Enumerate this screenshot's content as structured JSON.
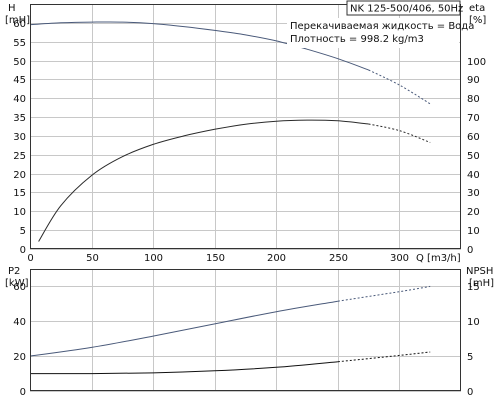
{
  "title": "NK 125-500/406, 50Hz",
  "legend_lines": [
    "Перекачиваемая жидкость = Вода",
    "Плотность = 998.2 kg/m3"
  ],
  "colors": {
    "h_curve": "#4a5a7a",
    "eta_curve": "#2a2a2a",
    "p2_curve": "#4a5a7a",
    "npsh_curve": "#111111",
    "grid": "#c8c8c8",
    "frame": "#333333"
  },
  "chart_data": [
    {
      "type": "line",
      "xlabel": "Q [m3/h]",
      "xlim": [
        0,
        350
      ],
      "xticks": [
        0,
        50,
        100,
        150,
        200,
        250,
        300
      ],
      "y_axis_left": {
        "label": [
          "H",
          "[mH]"
        ],
        "lim": [
          0,
          65
        ],
        "ticks": [
          0,
          5,
          10,
          15,
          20,
          25,
          30,
          35,
          40,
          45,
          50,
          55,
          60
        ]
      },
      "y_axis_right": {
        "label": [
          "eta",
          "[%]"
        ],
        "lim": [
          0,
          130
        ],
        "ticks": [
          0,
          10,
          20,
          30,
          40,
          50,
          60,
          70,
          80,
          90,
          100
        ]
      },
      "grid": true,
      "series": [
        {
          "axis": "left",
          "x": [
            0,
            25,
            50,
            75,
            100,
            125,
            150,
            175,
            200,
            225,
            250,
            275,
            300,
            325
          ],
          "values": [
            59.5,
            60.0,
            60.2,
            60.2,
            59.8,
            59.0,
            58.0,
            56.8,
            55.2,
            53.0,
            50.5,
            47.5,
            43.5,
            38.5
          ],
          "dashed_from": 290
        },
        {
          "axis": "right",
          "x": [
            7,
            25,
            50,
            75,
            100,
            125,
            150,
            175,
            200,
            225,
            250,
            275,
            300,
            325
          ],
          "values": [
            4,
            23,
            39,
            49,
            55.5,
            60,
            63.5,
            66.2,
            67.8,
            68.4,
            68.0,
            66.3,
            62.8,
            56.5
          ],
          "dashed_from": 290
        }
      ]
    },
    {
      "type": "line",
      "xlim": [
        0,
        350
      ],
      "xticks": [
        0,
        50,
        100,
        150,
        200,
        250,
        300
      ],
      "y_axis_left": {
        "label": [
          "P2",
          "[kW]"
        ],
        "lim": [
          0,
          70
        ],
        "ticks": [
          0,
          20,
          40,
          60
        ]
      },
      "y_axis_right": {
        "label": [
          "NPSH",
          "[mH]"
        ],
        "lim": [
          0,
          17.5
        ],
        "ticks": [
          0,
          5,
          10,
          15
        ]
      },
      "grid": true,
      "series": [
        {
          "axis": "left",
          "x": [
            0,
            50,
            100,
            150,
            200,
            250,
            300,
            325
          ],
          "values": [
            20,
            25,
            31.5,
            38.5,
            45.5,
            51.5,
            57,
            60
          ],
          "dashed_from": 290
        },
        {
          "axis": "right",
          "x": [
            0,
            50,
            100,
            150,
            200,
            250,
            300,
            325
          ],
          "values": [
            2.5,
            2.5,
            2.6,
            2.9,
            3.4,
            4.2,
            5.1,
            5.6
          ],
          "dashed_from": 290
        }
      ]
    }
  ]
}
